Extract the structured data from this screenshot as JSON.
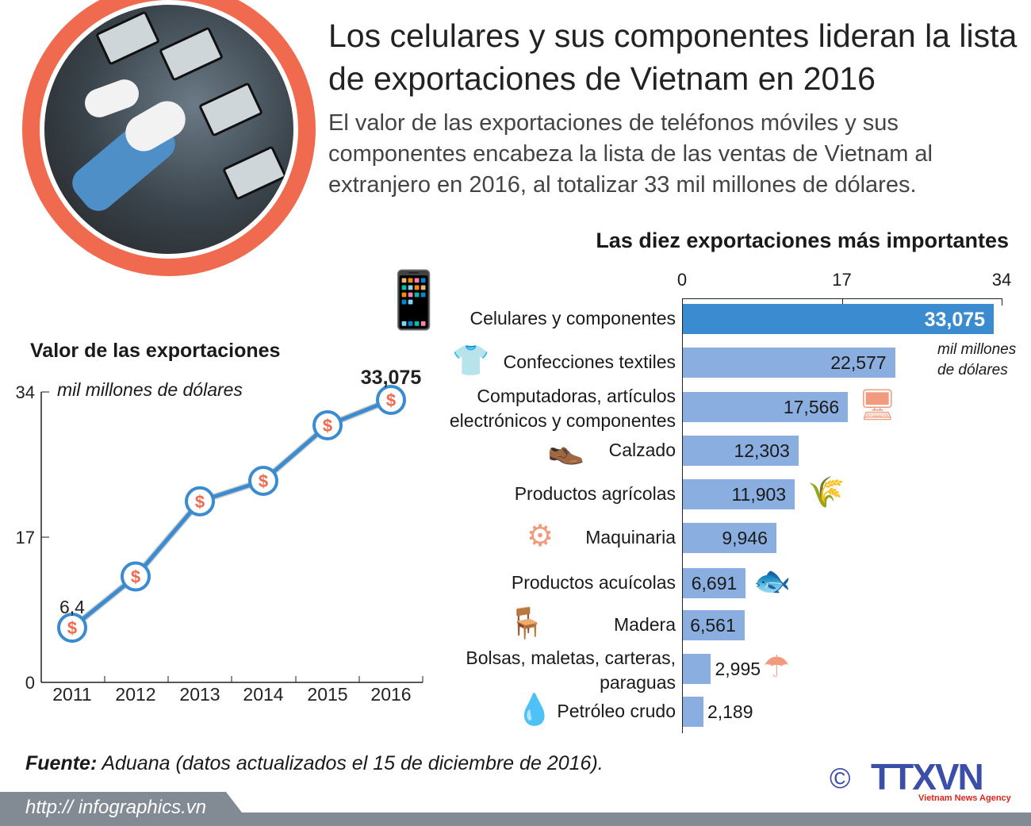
{
  "title": "Los celulares y sus componentes lideran la lista de exportaciones de Vietnam en 2016",
  "subtitle": "El valor de las exportaciones de teléfonos móviles y sus componentes encabeza la lista de las ventas de Vietnam al extranjero en 2016, al totalizar 33 mil millones de dólares.",
  "colors": {
    "accent_orange": "#ef6a4e",
    "line_blue": "#3a8bd0",
    "bar_blue": "#8aaee0",
    "bar_top": "#3a8bd0",
    "icon_salmon": "#f19a7e",
    "footer_grey": "#828b94",
    "logo_blue": "#3b4fa8",
    "logo_red": "#e2231a"
  },
  "chart_data": [
    {
      "type": "line",
      "title": "Valor de las exportaciones",
      "ylabel": "mil millones de dólares",
      "categories": [
        "2011",
        "2012",
        "2013",
        "2014",
        "2015",
        "2016"
      ],
      "values": [
        6.4,
        12.4,
        21.2,
        23.6,
        30.1,
        33.075
      ],
      "data_labels": {
        "2011": "6,4",
        "2016": "33,075"
      },
      "yticks": [
        "0",
        "17",
        "34"
      ],
      "ylim": [
        0,
        34
      ],
      "marker": "dollar-circle",
      "grid": false
    },
    {
      "type": "bar",
      "orientation": "horizontal",
      "title": "Las diez exportaciones más importantes",
      "unit": "mil millones de dólares",
      "xticks": [
        "0",
        "17",
        "34"
      ],
      "xlim": [
        0,
        34
      ],
      "categories": [
        "Celulares y componentes",
        "Confecciones textiles",
        "Computadoras, artículos electrónicos y componentes",
        "Calzado",
        "Productos agrícolas",
        "Maquinaria",
        "Productos acuícolas",
        "Madera",
        "Bolsas, maletas, carteras, paraguas",
        "Petróleo crudo"
      ],
      "values": [
        33.075,
        22.577,
        17.566,
        12.303,
        11.903,
        9.946,
        6.691,
        6.561,
        2.995,
        2.189
      ],
      "labels": [
        "33,075",
        "22,577",
        "17,566",
        "12,303",
        "11,903",
        "9,946",
        "6,691",
        "6,561",
        "2,995",
        "2,189"
      ],
      "icons": [
        "phone-headphones-battery-icon",
        "tshirt-icon",
        "computer-icon",
        "shoe-icon",
        "wheat-icon",
        "gear-wrench-icon",
        "fish-icon",
        "log-chair-icon",
        "bags-umbrella-icon",
        "oil-drop-icon"
      ],
      "grid": false
    }
  ],
  "source_label": "Fuente:",
  "source_text": "Aduana (datos actualizados el 15 de diciembre de 2016).",
  "url": "http:// infographics.vn",
  "logo": {
    "text": "TTXVN",
    "tagline": "Vietnam News Agency",
    "copyright": "©"
  }
}
